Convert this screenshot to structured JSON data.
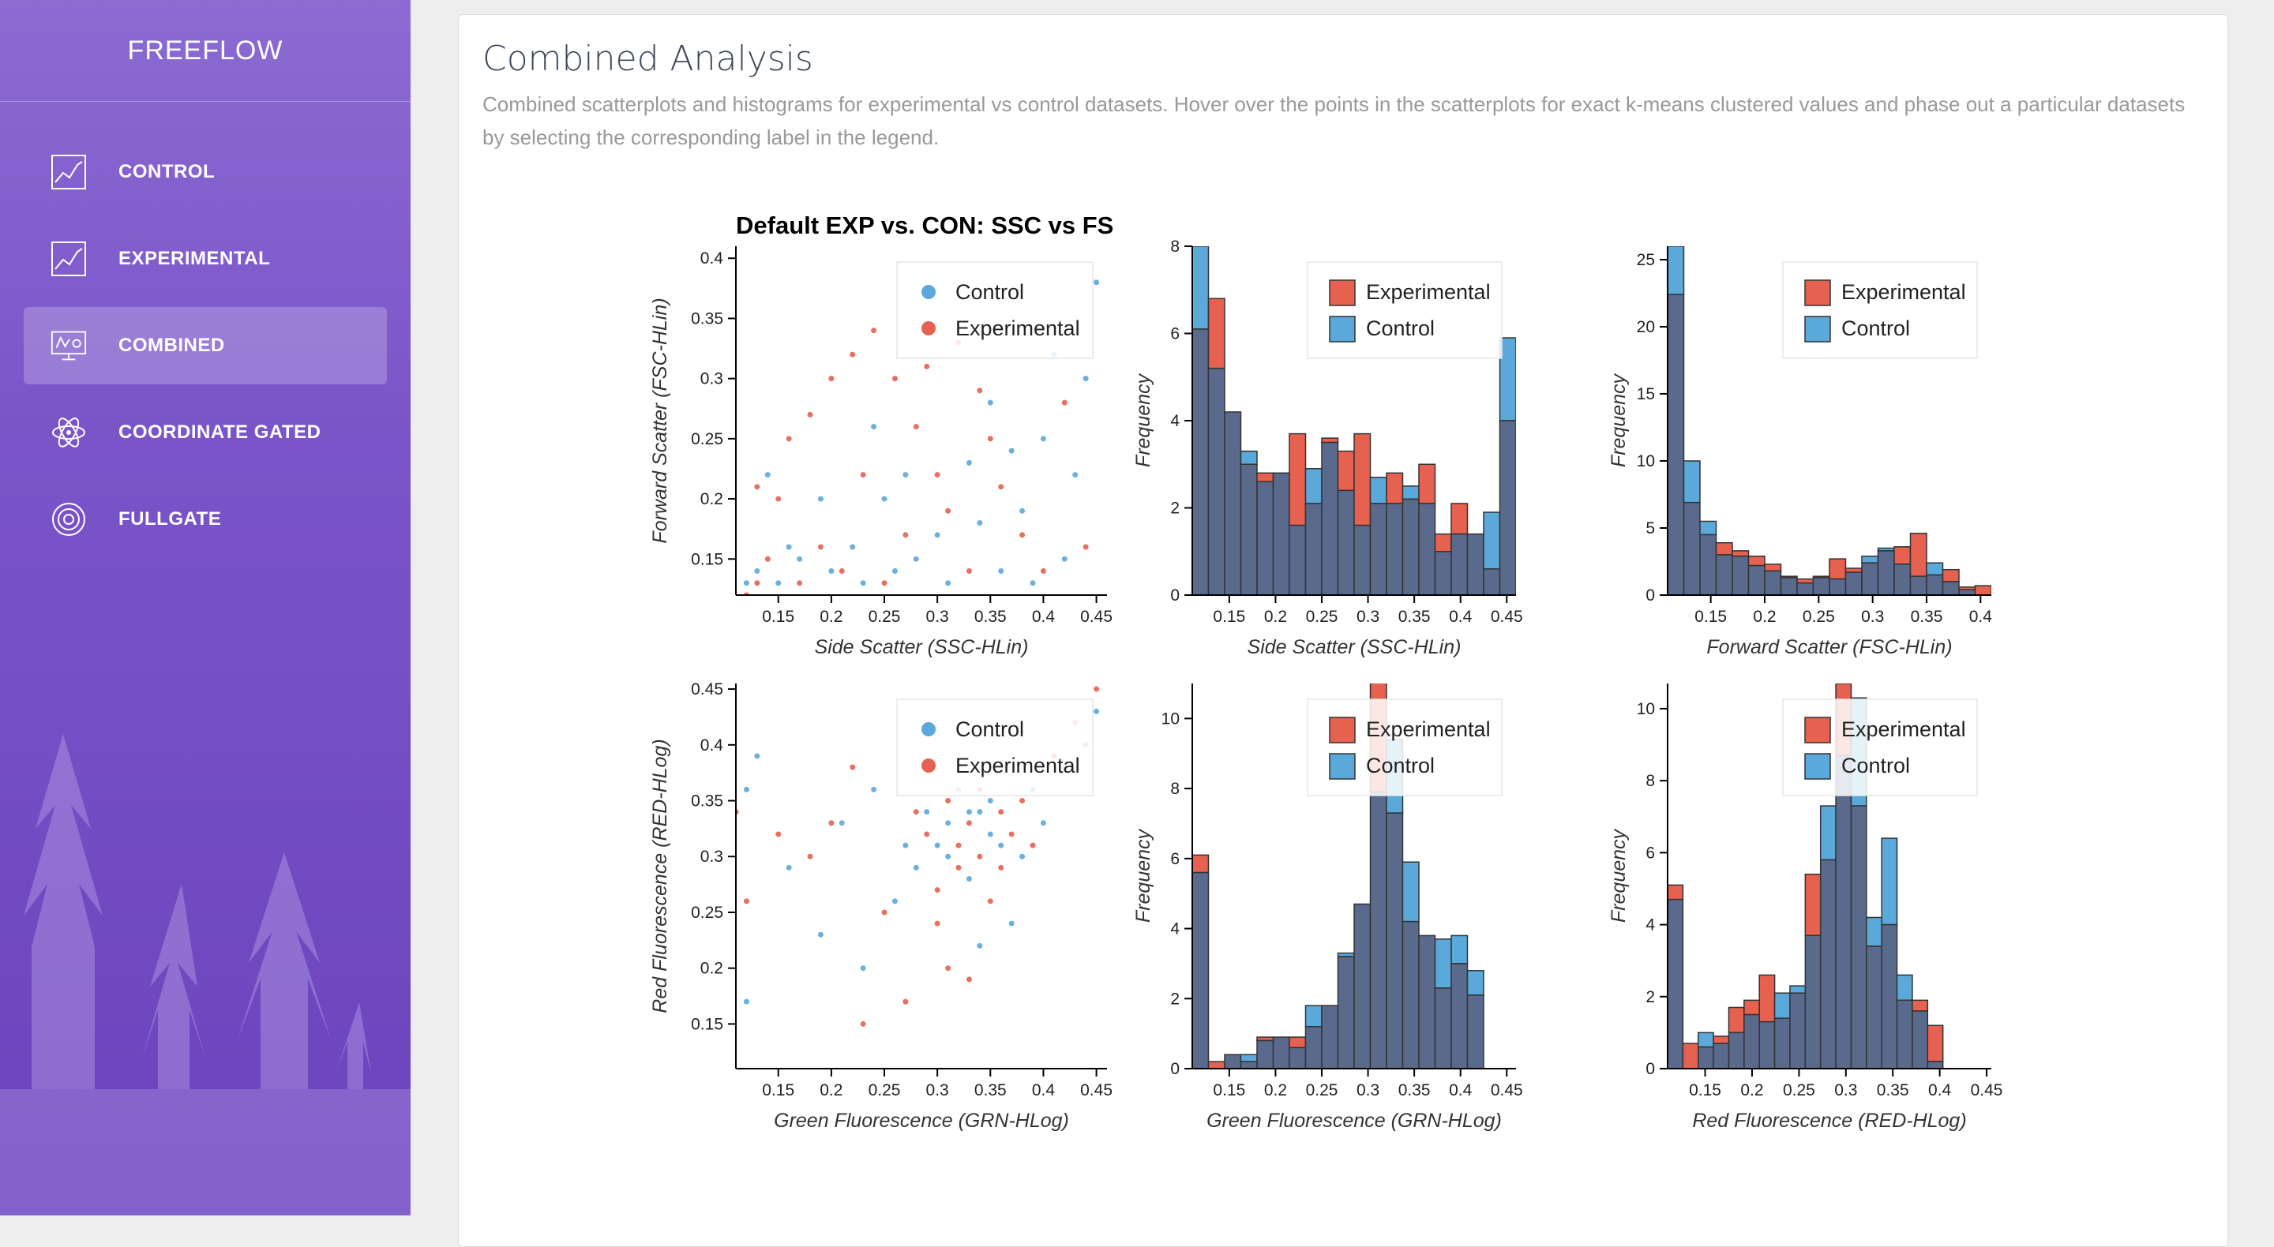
{
  "sidebar": {
    "brand": "FREEFLOW",
    "items": [
      {
        "label": "CONTROL",
        "icon": "line-chart-icon",
        "active": false
      },
      {
        "label": "EXPERIMENTAL",
        "icon": "line-chart-icon",
        "active": false
      },
      {
        "label": "COMBINED",
        "icon": "presentation-chart-icon",
        "active": true
      },
      {
        "label": "COORDINATE GATED",
        "icon": "atom-icon",
        "active": false
      },
      {
        "label": "FULLGATE",
        "icon": "target-icon",
        "active": false
      }
    ]
  },
  "page": {
    "title": "Combined Analysis",
    "description": "Combined scatterplots and histograms for experimental vs control datasets. Hover over the points in the scatterplots for exact k-means clustered values and phase out a particular datasets by selecting the corresponding label in the legend."
  },
  "colors": {
    "control": "#5aa9da",
    "experimental": "#e6614f",
    "overlap": "#5a6a8c"
  },
  "chart_data": [
    {
      "type": "scatter",
      "title": "Default EXP vs. CON: SSC vs FS",
      "xlabel": "Side Scatter (SSC-HLin)",
      "ylabel": "Forward Scatter (FSC-HLin)",
      "xlim": [
        0.11,
        0.46
      ],
      "ylim": [
        0.12,
        0.41
      ],
      "xticks": [
        "0.15",
        "0.2",
        "0.25",
        "0.3",
        "0.35",
        "0.4",
        "0.45"
      ],
      "yticks": [
        "0.15",
        "0.2",
        "0.25",
        "0.3",
        "0.35",
        "0.4"
      ],
      "legend": [
        "Control",
        "Experimental"
      ],
      "series": [
        {
          "name": "Control",
          "points": [
            [
              0.12,
              0.13
            ],
            [
              0.13,
              0.14
            ],
            [
              0.15,
              0.13
            ],
            [
              0.17,
              0.15
            ],
            [
              0.2,
              0.14
            ],
            [
              0.22,
              0.16
            ],
            [
              0.25,
              0.2
            ],
            [
              0.27,
              0.22
            ],
            [
              0.3,
              0.17
            ],
            [
              0.33,
              0.23
            ],
            [
              0.35,
              0.28
            ],
            [
              0.38,
              0.19
            ],
            [
              0.4,
              0.25
            ],
            [
              0.42,
              0.15
            ],
            [
              0.44,
              0.3
            ],
            [
              0.45,
              0.38
            ],
            [
              0.36,
              0.14
            ],
            [
              0.31,
              0.13
            ],
            [
              0.28,
              0.15
            ],
            [
              0.24,
              0.26
            ],
            [
              0.19,
              0.2
            ],
            [
              0.41,
              0.32
            ],
            [
              0.43,
              0.22
            ],
            [
              0.34,
              0.18
            ],
            [
              0.26,
              0.14
            ],
            [
              0.14,
              0.22
            ],
            [
              0.16,
              0.16
            ],
            [
              0.39,
              0.13
            ],
            [
              0.37,
              0.24
            ],
            [
              0.23,
              0.13
            ]
          ]
        },
        {
          "name": "Experimental",
          "points": [
            [
              0.12,
              0.12
            ],
            [
              0.13,
              0.13
            ],
            [
              0.14,
              0.15
            ],
            [
              0.15,
              0.2
            ],
            [
              0.16,
              0.25
            ],
            [
              0.18,
              0.27
            ],
            [
              0.2,
              0.3
            ],
            [
              0.22,
              0.32
            ],
            [
              0.24,
              0.34
            ],
            [
              0.26,
              0.3
            ],
            [
              0.28,
              0.26
            ],
            [
              0.3,
              0.22
            ],
            [
              0.32,
              0.33
            ],
            [
              0.34,
              0.29
            ],
            [
              0.36,
              0.21
            ],
            [
              0.38,
              0.17
            ],
            [
              0.4,
              0.14
            ],
            [
              0.42,
              0.28
            ],
            [
              0.44,
              0.16
            ],
            [
              0.21,
              0.14
            ],
            [
              0.17,
              0.13
            ],
            [
              0.27,
              0.17
            ],
            [
              0.33,
              0.14
            ],
            [
              0.29,
              0.31
            ],
            [
              0.23,
              0.22
            ],
            [
              0.19,
              0.16
            ],
            [
              0.13,
              0.21
            ],
            [
              0.35,
              0.25
            ],
            [
              0.25,
              0.13
            ],
            [
              0.31,
              0.19
            ]
          ]
        }
      ]
    },
    {
      "type": "histogram",
      "xlabel": "Side Scatter (SSC-HLin)",
      "ylabel": "Frequency",
      "xlim": [
        0.11,
        0.46
      ],
      "ylim": [
        0,
        8
      ],
      "xticks": [
        "0.15",
        "0.2",
        "0.25",
        "0.3",
        "0.35",
        "0.4",
        "0.45"
      ],
      "yticks": [
        "0",
        "2",
        "4",
        "6",
        "8"
      ],
      "legend": [
        "Experimental",
        "Control"
      ],
      "bin_start": 0.11,
      "bin_width": 0.0175,
      "series": [
        {
          "name": "Experimental",
          "values": [
            6.1,
            6.8,
            4.2,
            3,
            2.8,
            2.8,
            3.7,
            2.1,
            3.6,
            3.3,
            3.7,
            2.1,
            2.8,
            2.2,
            3,
            1.4,
            2.1,
            1.4,
            0.6,
            4
          ]
        },
        {
          "name": "Control",
          "values": [
            8,
            5.2,
            4.2,
            3.3,
            2.6,
            2.8,
            1.6,
            2.9,
            3.5,
            2.4,
            1.6,
            2.7,
            2.1,
            2.5,
            2.1,
            1,
            1.4,
            1.4,
            1.9,
            5.9
          ]
        }
      ]
    },
    {
      "type": "histogram",
      "xlabel": "Forward Scatter (FSC-HLin)",
      "ylabel": "Frequency",
      "xlim": [
        0.11,
        0.41
      ],
      "ylim": [
        0,
        26
      ],
      "xticks": [
        "0.15",
        "0.2",
        "0.25",
        "0.3",
        "0.35",
        "0.4"
      ],
      "yticks": [
        "0",
        "5",
        "10",
        "15",
        "20",
        "25"
      ],
      "legend": [
        "Experimental",
        "Control"
      ],
      "bin_start": 0.11,
      "bin_width": 0.015,
      "series": [
        {
          "name": "Experimental",
          "values": [
            22.4,
            6.9,
            4.5,
            3.9,
            3.3,
            2.9,
            2.3,
            1.4,
            1.2,
            1.4,
            2.7,
            2,
            2.4,
            3.3,
            3.6,
            4.6,
            1.5,
            1.9,
            0.6,
            0.7
          ]
        },
        {
          "name": "Control",
          "values": [
            26,
            10,
            5.5,
            3,
            2.9,
            2.2,
            1.8,
            1.3,
            0.9,
            1.3,
            1.2,
            1.7,
            2.9,
            3.5,
            2.3,
            1.4,
            2.4,
            1,
            0.4,
            0
          ]
        }
      ]
    },
    {
      "type": "scatter",
      "xlabel": "Green Fluorescence (GRN-HLog)",
      "ylabel": "Red Fluorescence (RED-HLog)",
      "xlim": [
        0.11,
        0.46
      ],
      "ylim": [
        0.11,
        0.455
      ],
      "xticks": [
        "0.15",
        "0.2",
        "0.25",
        "0.3",
        "0.35",
        "0.4",
        "0.45"
      ],
      "yticks": [
        "0.15",
        "0.2",
        "0.25",
        "0.3",
        "0.35",
        "0.4",
        "0.45"
      ],
      "legend": [
        "Control",
        "Experimental"
      ],
      "series": [
        {
          "name": "Control",
          "points": [
            [
              0.12,
              0.36
            ],
            [
              0.13,
              0.39
            ],
            [
              0.16,
              0.29
            ],
            [
              0.19,
              0.23
            ],
            [
              0.21,
              0.33
            ],
            [
              0.24,
              0.36
            ],
            [
              0.27,
              0.31
            ],
            [
              0.29,
              0.34
            ],
            [
              0.31,
              0.33
            ],
            [
              0.32,
              0.36
            ],
            [
              0.33,
              0.28
            ],
            [
              0.34,
              0.34
            ],
            [
              0.35,
              0.35
            ],
            [
              0.36,
              0.31
            ],
            [
              0.37,
              0.24
            ],
            [
              0.38,
              0.3
            ],
            [
              0.39,
              0.36
            ],
            [
              0.4,
              0.33
            ],
            [
              0.42,
              0.38
            ],
            [
              0.44,
              0.4
            ],
            [
              0.45,
              0.43
            ],
            [
              0.34,
              0.22
            ],
            [
              0.3,
              0.31
            ],
            [
              0.28,
              0.29
            ],
            [
              0.23,
              0.2
            ],
            [
              0.35,
              0.32
            ],
            [
              0.33,
              0.34
            ],
            [
              0.31,
              0.3
            ],
            [
              0.12,
              0.17
            ],
            [
              0.26,
              0.26
            ]
          ]
        },
        {
          "name": "Experimental",
          "points": [
            [
              0.11,
              0.34
            ],
            [
              0.12,
              0.26
            ],
            [
              0.15,
              0.32
            ],
            [
              0.18,
              0.3
            ],
            [
              0.2,
              0.33
            ],
            [
              0.22,
              0.38
            ],
            [
              0.25,
              0.25
            ],
            [
              0.27,
              0.17
            ],
            [
              0.29,
              0.32
            ],
            [
              0.3,
              0.24
            ],
            [
              0.31,
              0.35
            ],
            [
              0.32,
              0.29
            ],
            [
              0.33,
              0.33
            ],
            [
              0.34,
              0.3
            ],
            [
              0.35,
              0.26
            ],
            [
              0.36,
              0.34
            ],
            [
              0.37,
              0.32
            ],
            [
              0.38,
              0.35
            ],
            [
              0.39,
              0.31
            ],
            [
              0.41,
              0.39
            ],
            [
              0.43,
              0.42
            ],
            [
              0.45,
              0.45
            ],
            [
              0.33,
              0.19
            ],
            [
              0.3,
              0.27
            ],
            [
              0.34,
              0.36
            ],
            [
              0.32,
              0.31
            ],
            [
              0.28,
              0.34
            ],
            [
              0.36,
              0.29
            ],
            [
              0.23,
              0.15
            ],
            [
              0.31,
              0.2
            ]
          ]
        }
      ]
    },
    {
      "type": "histogram",
      "xlabel": "Green Fluorescence (GRN-HLog)",
      "ylabel": "Frequency",
      "xlim": [
        0.11,
        0.46
      ],
      "ylim": [
        0,
        11
      ],
      "xticks": [
        "0.15",
        "0.2",
        "0.25",
        "0.3",
        "0.35",
        "0.4",
        "0.45"
      ],
      "yticks": [
        "0",
        "2",
        "4",
        "6",
        "8",
        "10"
      ],
      "legend": [
        "Experimental",
        "Control"
      ],
      "bin_start": 0.11,
      "bin_width": 0.0175,
      "series": [
        {
          "name": "Experimental",
          "values": [
            6.1,
            0.2,
            0.4,
            0.2,
            0.9,
            0.9,
            0.9,
            1.2,
            1.8,
            3.2,
            4.7,
            11.3,
            7.3,
            4.2,
            3.8,
            2.3,
            3,
            2.1
          ]
        },
        {
          "name": "Control",
          "values": [
            5.6,
            0,
            0.4,
            0.4,
            0.8,
            0.9,
            0.6,
            1.8,
            1.8,
            3.3,
            4.7,
            7.9,
            9.4,
            5.9,
            3.8,
            3.7,
            3.8,
            2.8
          ]
        }
      ]
    },
    {
      "type": "histogram",
      "xlabel": "Red Fluorescence (RED-HLog)",
      "ylabel": "Frequency",
      "xlim": [
        0.11,
        0.455
      ],
      "ylim": [
        0,
        10.7
      ],
      "xticks": [
        "0.15",
        "0.2",
        "0.25",
        "0.3",
        "0.35",
        "0.4",
        "0.45"
      ],
      "yticks": [
        "0",
        "2",
        "4",
        "6",
        "8",
        "10"
      ],
      "legend": [
        "Experimental",
        "Control"
      ],
      "bin_start": 0.11,
      "bin_width": 0.0163,
      "series": [
        {
          "name": "Experimental",
          "values": [
            5.1,
            0.7,
            0.6,
            0.9,
            1.7,
            1.9,
            2.6,
            1.4,
            2.1,
            5.4,
            5.8,
            10.7,
            7.3,
            3.4,
            4,
            1.9,
            1.9,
            1.2
          ]
        },
        {
          "name": "Control",
          "values": [
            4.7,
            0,
            1,
            0.7,
            1,
            1.5,
            1.3,
            2.1,
            2.3,
            3.7,
            7.3,
            8.7,
            10.3,
            4.2,
            6.4,
            2.6,
            1.6,
            0.2
          ]
        }
      ]
    }
  ]
}
